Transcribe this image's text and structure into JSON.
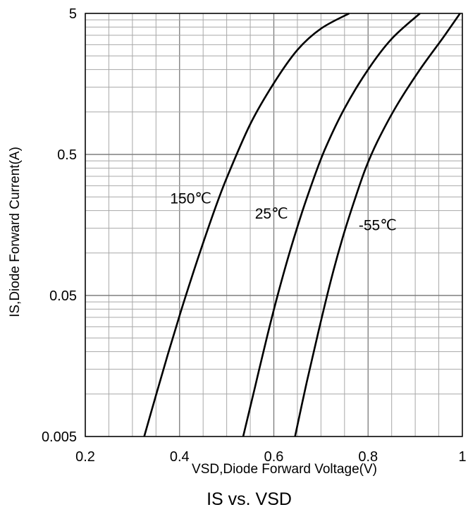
{
  "chart_data": {
    "type": "line",
    "title": "IS vs. VSD",
    "xlabel": "VSD,Diode Forward Voltage(V)",
    "ylabel": "IS,Diode Forward Current(A)",
    "xlim": [
      0.2,
      1.0
    ],
    "ylim": [
      0.005,
      5
    ],
    "yscale": "log",
    "grid": true,
    "x_ticks": [
      0.2,
      0.4,
      0.6,
      0.8,
      1.0
    ],
    "x_tick_labels": [
      "0.2",
      "0.4",
      "0.6",
      "0.8",
      "1"
    ],
    "y_ticks": [
      0.005,
      0.05,
      0.5,
      5
    ],
    "y_tick_labels": [
      "0.005",
      "0.05",
      "0.5",
      "5"
    ],
    "series": [
      {
        "name": "150℃",
        "x": [
          0.325,
          0.35,
          0.375,
          0.4,
          0.425,
          0.45,
          0.475,
          0.5,
          0.55,
          0.6,
          0.65,
          0.7,
          0.76
        ],
        "y": [
          0.005,
          0.0098,
          0.019,
          0.036,
          0.066,
          0.118,
          0.205,
          0.34,
          0.82,
          1.6,
          2.75,
          3.9,
          5.0
        ]
      },
      {
        "name": "25℃",
        "x": [
          0.535,
          0.56,
          0.585,
          0.61,
          0.635,
          0.66,
          0.685,
          0.71,
          0.75,
          0.8,
          0.85,
          0.91
        ],
        "y": [
          0.005,
          0.0112,
          0.025,
          0.053,
          0.105,
          0.195,
          0.34,
          0.56,
          1.06,
          2.0,
          3.3,
          5.0
        ]
      },
      {
        "name": "-55℃",
        "x": [
          0.645,
          0.67,
          0.695,
          0.72,
          0.745,
          0.77,
          0.795,
          0.82,
          0.86,
          0.91,
          0.96,
          0.995
        ],
        "y": [
          0.005,
          0.0122,
          0.028,
          0.062,
          0.125,
          0.23,
          0.4,
          0.62,
          1.1,
          2.0,
          3.4,
          5.0
        ]
      }
    ],
    "annotations": [
      {
        "text": "150℃",
        "x": 0.38,
        "y": 0.225
      },
      {
        "text": "25℃",
        "x": 0.56,
        "y": 0.175
      },
      {
        "text": "-55℃",
        "x": 0.78,
        "y": 0.145
      }
    ]
  }
}
